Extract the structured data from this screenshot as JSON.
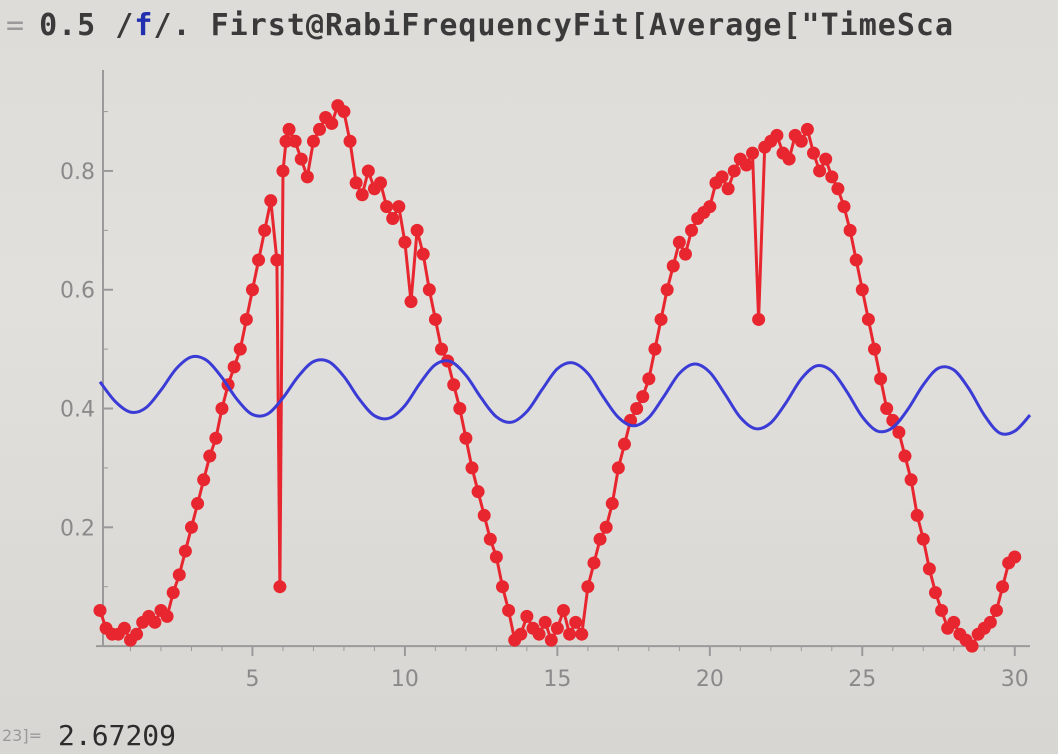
{
  "input": {
    "prefix": "0.5 / ",
    "var": "f",
    "suffix": " /. First@RabiFrequencyFit[Average[\"TimeSca"
  },
  "output": {
    "label": "23]=",
    "value": "2.67209"
  },
  "chart_data": {
    "type": "line",
    "title": "",
    "xlabel": "",
    "ylabel": "",
    "xlim": [
      0,
      30.5
    ],
    "ylim": [
      -0.015,
      0.97
    ],
    "x_ticks": [
      5,
      10,
      15,
      20,
      25,
      30
    ],
    "y_ticks": [
      0.2,
      0.4,
      0.6,
      0.8
    ],
    "x_tick_labels": [
      "5",
      "10",
      "15",
      "20",
      "25",
      "30"
    ],
    "y_tick_labels": [
      "0.2",
      "0.4",
      "0.6",
      "0.8"
    ],
    "grid": false,
    "legend": "none",
    "colors": {
      "data": "#e8262f",
      "fit": "#3b3bd6",
      "axis": "#9a9a9a",
      "text": "#8a8a8a"
    },
    "series": [
      {
        "style": "points-joined",
        "x": [
          0,
          0.2,
          0.4,
          0.6,
          0.8,
          1.0,
          1.2,
          1.4,
          1.6,
          1.8,
          2.0,
          2.2,
          2.4,
          2.6,
          2.8,
          3.0,
          3.2,
          3.4,
          3.6,
          3.8,
          4.0,
          4.2,
          4.4,
          4.6,
          4.8,
          5.0,
          5.2,
          5.4,
          5.6,
          5.8,
          5.9,
          6.0,
          6.1,
          6.2,
          6.4,
          6.6,
          6.8,
          7.0,
          7.2,
          7.4,
          7.6,
          7.8,
          8.0,
          8.2,
          8.4,
          8.6,
          8.8,
          9.0,
          9.2,
          9.4,
          9.6,
          9.8,
          10.0,
          10.2,
          10.4,
          10.6,
          10.8,
          11.0,
          11.2,
          11.4,
          11.6,
          11.8,
          12.0,
          12.2,
          12.4,
          12.6,
          12.8,
          13.0,
          13.2,
          13.4,
          13.6,
          13.8,
          14.0,
          14.2,
          14.4,
          14.6,
          14.8,
          15.0,
          15.2,
          15.4,
          15.6,
          15.8,
          16.0,
          16.2,
          16.4,
          16.6,
          16.8,
          17.0,
          17.2,
          17.4,
          17.6,
          17.8,
          18.0,
          18.2,
          18.4,
          18.6,
          18.8,
          19.0,
          19.2,
          19.4,
          19.6,
          19.8,
          20.0,
          20.2,
          20.4,
          20.6,
          20.8,
          21.0,
          21.2,
          21.4,
          21.6,
          21.8,
          22.0,
          22.2,
          22.4,
          22.6,
          22.8,
          23.0,
          23.2,
          23.4,
          23.6,
          23.8,
          24.0,
          24.2,
          24.4,
          24.6,
          24.8,
          25.0,
          25.2,
          25.4,
          25.6,
          25.8,
          26.0,
          26.2,
          26.4,
          26.6,
          26.8,
          27.0,
          27.2,
          27.4,
          27.6,
          27.8,
          28.0,
          28.2,
          28.4,
          28.6,
          28.8,
          29.0,
          29.2,
          29.4,
          29.6,
          29.8,
          30.0
        ],
        "y": [
          0.06,
          0.03,
          0.02,
          0.02,
          0.03,
          0.01,
          0.02,
          0.04,
          0.05,
          0.04,
          0.06,
          0.05,
          0.09,
          0.12,
          0.16,
          0.2,
          0.24,
          0.28,
          0.32,
          0.35,
          0.4,
          0.44,
          0.47,
          0.5,
          0.55,
          0.6,
          0.65,
          0.7,
          0.75,
          0.65,
          0.1,
          0.8,
          0.85,
          0.87,
          0.85,
          0.82,
          0.79,
          0.85,
          0.87,
          0.89,
          0.88,
          0.91,
          0.9,
          0.85,
          0.78,
          0.76,
          0.8,
          0.77,
          0.78,
          0.74,
          0.72,
          0.74,
          0.68,
          0.58,
          0.7,
          0.66,
          0.6,
          0.55,
          0.5,
          0.48,
          0.44,
          0.4,
          0.35,
          0.3,
          0.26,
          0.22,
          0.18,
          0.15,
          0.1,
          0.06,
          0.01,
          0.02,
          0.05,
          0.03,
          0.02,
          0.04,
          0.01,
          0.03,
          0.06,
          0.02,
          0.04,
          0.02,
          0.1,
          0.14,
          0.18,
          0.2,
          0.24,
          0.3,
          0.34,
          0.38,
          0.4,
          0.42,
          0.45,
          0.5,
          0.55,
          0.6,
          0.64,
          0.68,
          0.66,
          0.7,
          0.72,
          0.73,
          0.74,
          0.78,
          0.79,
          0.77,
          0.8,
          0.82,
          0.81,
          0.83,
          0.55,
          0.84,
          0.85,
          0.86,
          0.83,
          0.82,
          0.86,
          0.85,
          0.87,
          0.83,
          0.8,
          0.82,
          0.79,
          0.77,
          0.74,
          0.7,
          0.65,
          0.6,
          0.55,
          0.5,
          0.45,
          0.4,
          0.38,
          0.36,
          0.32,
          0.28,
          0.22,
          0.18,
          0.13,
          0.09,
          0.06,
          0.03,
          0.04,
          0.02,
          0.01,
          0.0,
          0.02,
          0.03,
          0.04,
          0.06,
          0.1,
          0.14,
          0.15
        ]
      },
      {
        "style": "line",
        "x": [
          0,
          0.5,
          1.0,
          1.5,
          2.0,
          2.5,
          3.0,
          3.5,
          4.0,
          4.5,
          5.0,
          5.5,
          6.0,
          6.5,
          7.0,
          7.5,
          8.0,
          8.5,
          9.0,
          9.5,
          10.0,
          10.5,
          11.0,
          11.5,
          12.0,
          12.5,
          13.0,
          13.5,
          14.0,
          14.5,
          15.0,
          15.5,
          16.0,
          16.5,
          17.0,
          17.5,
          18.0,
          18.5,
          19.0,
          19.5,
          20.0,
          20.5,
          21.0,
          21.5,
          22.0,
          22.5,
          23.0,
          23.5,
          24.0,
          24.5,
          25.0,
          25.5,
          26.0,
          26.5,
          27.0,
          27.5,
          28.0,
          28.5,
          29.0,
          29.5,
          30.0,
          30.5
        ],
        "y": [
          0.445,
          0.412,
          0.394,
          0.401,
          0.431,
          0.467,
          0.487,
          0.481,
          0.452,
          0.415,
          0.39,
          0.391,
          0.418,
          0.454,
          0.479,
          0.479,
          0.454,
          0.416,
          0.388,
          0.384,
          0.405,
          0.443,
          0.474,
          0.479,
          0.456,
          0.418,
          0.386,
          0.377,
          0.395,
          0.432,
          0.467,
          0.477,
          0.459,
          0.42,
          0.385,
          0.371,
          0.385,
          0.421,
          0.459,
          0.475,
          0.461,
          0.424,
          0.385,
          0.366,
          0.376,
          0.41,
          0.45,
          0.472,
          0.463,
          0.428,
          0.386,
          0.362,
          0.368,
          0.399,
          0.44,
          0.468,
          0.465,
          0.433,
          0.389,
          0.359,
          0.362,
          0.389
        ]
      }
    ]
  }
}
